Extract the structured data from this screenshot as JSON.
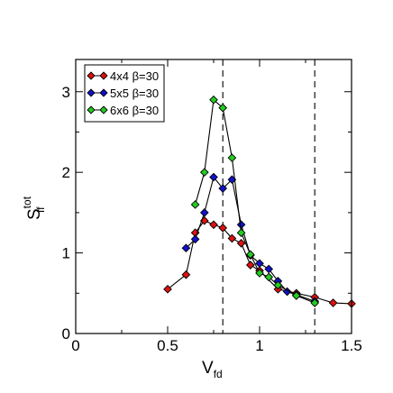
{
  "chart_data": {
    "type": "scatter",
    "title": "",
    "xlabel": {
      "main": "V",
      "sub": "fd"
    },
    "ylabel": {
      "main": "S",
      "sub": "ff",
      "sup": "tot"
    },
    "xlim": [
      0,
      1.5
    ],
    "ylim": [
      0,
      3.4
    ],
    "xticks": [
      0,
      0.5,
      1,
      1.5
    ],
    "xtick_labels": [
      "0",
      "0.5",
      "1",
      "1.5"
    ],
    "yticks": [
      0,
      1,
      2,
      3
    ],
    "ytick_labels": [
      "0",
      "1",
      "2",
      "3"
    ],
    "grid": false,
    "legend_position": "top-left",
    "vertical_lines": [
      0.8,
      1.3
    ],
    "series": [
      {
        "name": "4x4  β=30",
        "color": "#dd1111",
        "x": [
          0.5,
          0.6,
          0.65,
          0.7,
          0.75,
          0.8,
          0.85,
          0.9,
          0.95,
          1.0,
          1.1,
          1.2,
          1.3,
          1.4,
          1.5
        ],
        "y": [
          0.55,
          0.73,
          1.25,
          1.4,
          1.35,
          1.31,
          1.18,
          1.12,
          0.85,
          0.78,
          0.55,
          0.5,
          0.45,
          0.38,
          0.37
        ]
      },
      {
        "name": "5x5  β=30",
        "color": "#1111cc",
        "x": [
          0.6,
          0.65,
          0.7,
          0.75,
          0.8,
          0.85,
          0.9,
          0.95,
          1.0,
          1.05,
          1.1,
          1.15,
          1.2,
          1.3
        ],
        "y": [
          1.06,
          1.17,
          1.5,
          1.94,
          1.8,
          1.91,
          1.35,
          0.97,
          0.87,
          0.8,
          0.65,
          0.52,
          0.48,
          0.4
        ]
      },
      {
        "name": "6x6  β=30",
        "color": "#22cc22",
        "x": [
          0.65,
          0.7,
          0.75,
          0.8,
          0.85,
          0.9,
          0.95,
          1.0,
          1.05,
          1.1,
          1.2,
          1.3
        ],
        "y": [
          1.6,
          2.0,
          2.9,
          2.8,
          2.18,
          1.25,
          0.98,
          0.75,
          0.7,
          0.6,
          0.47,
          0.38
        ]
      }
    ]
  }
}
